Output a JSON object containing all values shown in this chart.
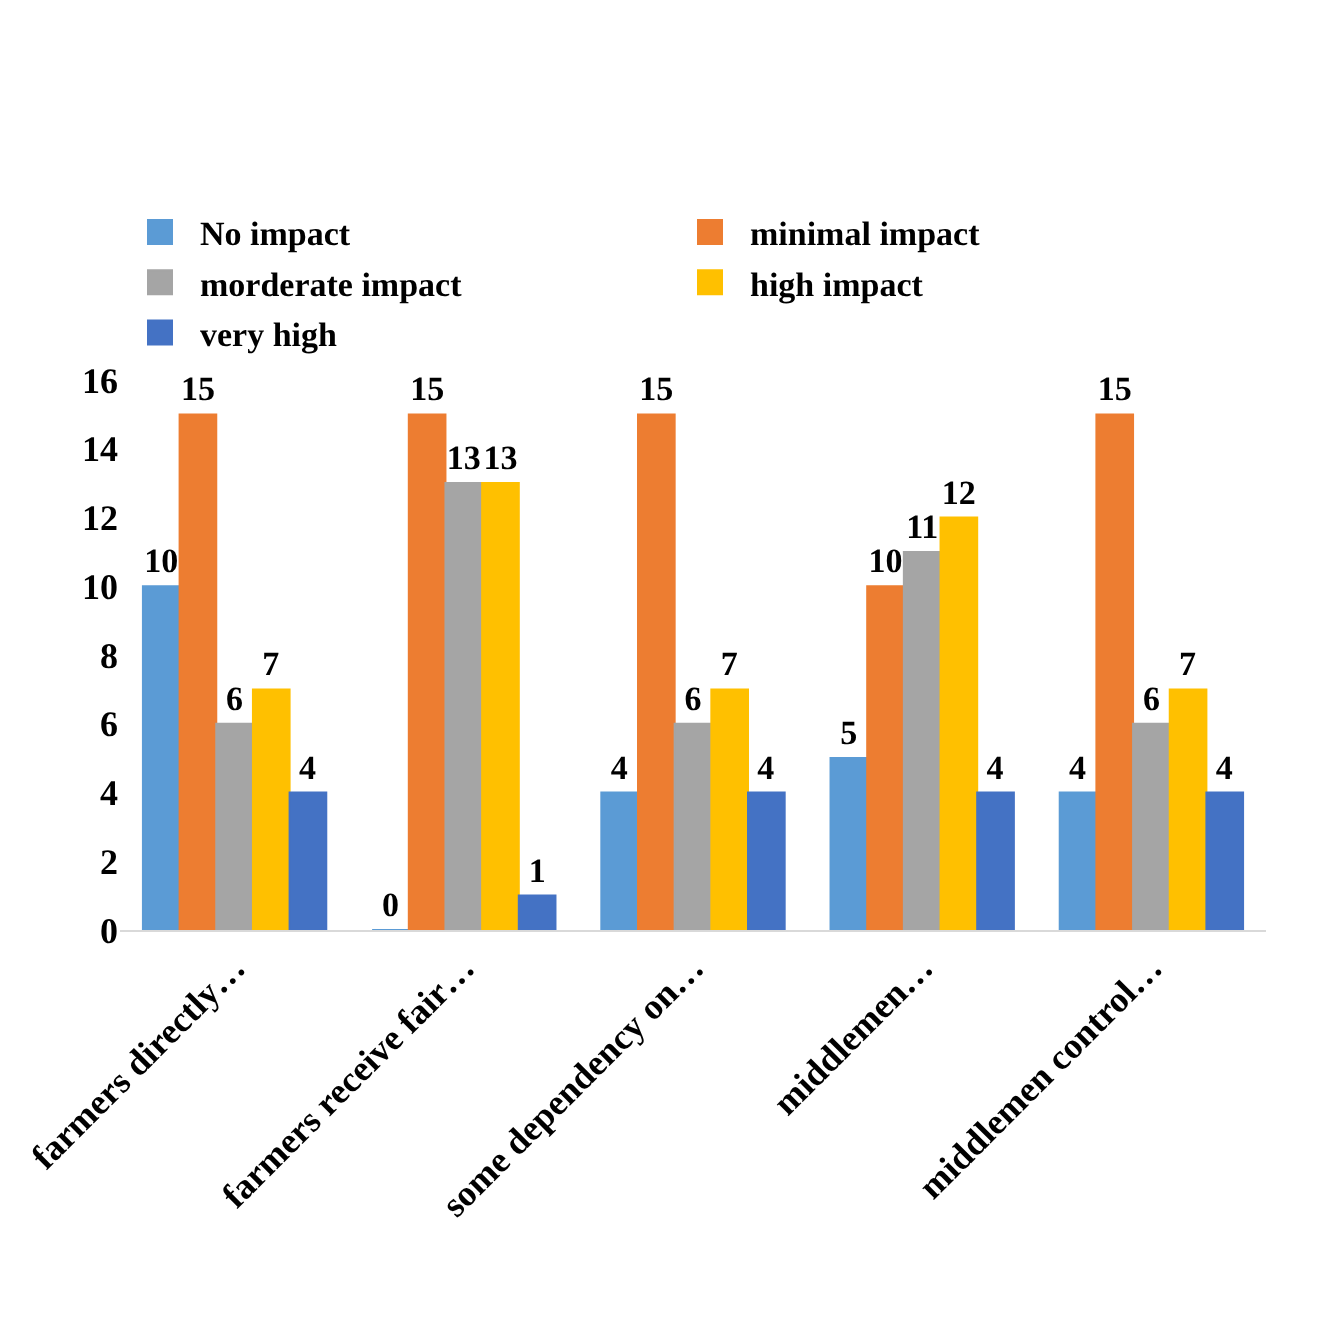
{
  "chart_data": {
    "type": "bar",
    "categories": [
      "farmers directly…",
      "farmers receive fair…",
      "some dependency on…",
      "middlemen…",
      "middlemen control…"
    ],
    "series": [
      {
        "name": "No impact",
        "color": "#5b9bd5",
        "values": [
          10,
          0,
          4,
          5,
          4
        ]
      },
      {
        "name": "minimal impact",
        "color": "#ed7d31",
        "values": [
          15,
          15,
          15,
          10,
          15
        ]
      },
      {
        "name": "morderate impact",
        "color": "#a5a5a5",
        "values": [
          6,
          13,
          6,
          11,
          6
        ]
      },
      {
        "name": "high impact",
        "color": "#ffc000",
        "values": [
          7,
          13,
          7,
          12,
          7
        ]
      },
      {
        "name": "very high",
        "color": "#4472c4",
        "values": [
          4,
          1,
          4,
          4,
          4
        ]
      }
    ],
    "ylim": [
      0,
      16
    ],
    "yticks": [
      0,
      2,
      4,
      6,
      8,
      10,
      12,
      14,
      16
    ],
    "legend": "top",
    "data_labels": true
  }
}
